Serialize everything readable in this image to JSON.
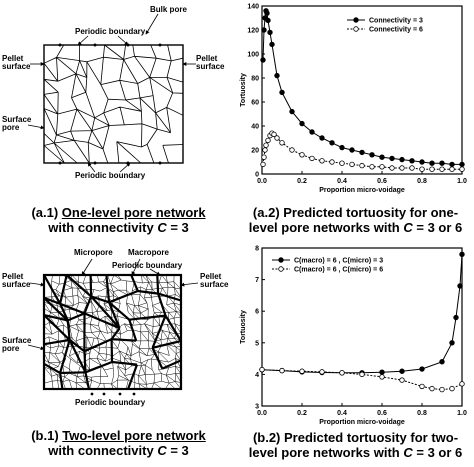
{
  "figure_a1": {
    "labels": {
      "periodic_top": "Periodic boundary",
      "bulk_pore": "Bulk pore",
      "pellet_left": "Pellet\nsurface",
      "pellet_right": "Pellet\nsurface",
      "surface_pore": "Surface\npore",
      "periodic_bottom": "Periodic boundary"
    },
    "caption": {
      "prefix": "(a.1) ",
      "underlined": "One-level pore network",
      "line2_prefix": "with connectivity ",
      "var": "C",
      "line2_suffix": " = 3"
    }
  },
  "figure_b1": {
    "labels": {
      "micropore": "Micropore",
      "macropore": "Macropore",
      "periodic_top": "Periodic boundary",
      "pellet_left": "Pellet\nsurface",
      "pellet_right": "Pellet\nsurface",
      "surface_pore": "Surface\npore",
      "periodic_bottom": "Periodic boundary"
    },
    "caption": {
      "prefix": "(b.1) ",
      "underlined": "Two-level pore network",
      "line2_prefix": "with connectivity ",
      "var": "C",
      "line2_suffix": " = 3"
    }
  },
  "figure_a2": {
    "caption": {
      "line1": "(a.2) Predicted tortuosity for one-",
      "line2_prefix": "level pore networks with ",
      "var": "C",
      "line2_suffix": " = 3 or 6"
    }
  },
  "figure_b2": {
    "caption": {
      "line1": "(b.2) Predicted tortuosity for two-",
      "line2_prefix": "level pore networks with ",
      "var": "C",
      "line2_suffix": " = 3 or 6"
    }
  },
  "chart_data": [
    {
      "type": "line",
      "xlabel": "Proportion micro-voidage",
      "ylabel": "Tortuosity",
      "xlim": [
        0,
        1.0
      ],
      "ylim": [
        0,
        140
      ],
      "xticks": [
        "0.0",
        "0.2",
        "0.4",
        "0.6",
        "0.8",
        "1.0"
      ],
      "yticks": [
        "0",
        "20",
        "40",
        "60",
        "80",
        "100",
        "120",
        "140"
      ],
      "legend_position": "top-right",
      "series": [
        {
          "name": "Connectivity = 3",
          "marker": "filled",
          "x": [
            0.005,
            0.01,
            0.015,
            0.02,
            0.025,
            0.03,
            0.04,
            0.05,
            0.075,
            0.1,
            0.15,
            0.2,
            0.25,
            0.3,
            0.35,
            0.4,
            0.45,
            0.5,
            0.55,
            0.6,
            0.65,
            0.7,
            0.75,
            0.8,
            0.85,
            0.9,
            0.95,
            1.0
          ],
          "y": [
            95,
            120,
            130,
            136,
            134,
            128,
            118,
            108,
            82,
            68,
            52,
            42,
            35,
            30,
            26,
            22,
            20,
            18,
            16,
            14,
            13,
            12,
            11,
            10,
            9,
            9,
            8,
            8
          ]
        },
        {
          "name": "Connectivity = 6",
          "marker": "open",
          "x": [
            0.005,
            0.01,
            0.015,
            0.02,
            0.03,
            0.04,
            0.05,
            0.06,
            0.075,
            0.1,
            0.15,
            0.2,
            0.25,
            0.3,
            0.35,
            0.4,
            0.45,
            0.5,
            0.55,
            0.6,
            0.65,
            0.7,
            0.75,
            0.8,
            0.85,
            0.9,
            0.95,
            1.0
          ],
          "y": [
            8,
            14,
            20,
            24,
            28,
            32,
            34,
            33,
            30,
            26,
            20,
            16,
            13,
            11,
            10,
            9,
            8,
            7,
            6,
            6,
            5,
            5,
            5,
            4,
            4,
            4,
            4,
            4
          ]
        }
      ]
    },
    {
      "type": "line",
      "xlabel": "Proportion micro-voidage",
      "ylabel": "Tortuosity",
      "xlim": [
        0,
        1.0
      ],
      "ylim": [
        3,
        8
      ],
      "xticks": [
        "0.0",
        "0.2",
        "0.4",
        "0.6",
        "0.8",
        "1.0"
      ],
      "yticks": [
        "3",
        "4",
        "5",
        "6",
        "7",
        "8"
      ],
      "legend_position": "top-left",
      "series": [
        {
          "name": "C(macro) = 6 , C(micro) = 3",
          "marker": "filled",
          "x": [
            0.0,
            0.1,
            0.2,
            0.3,
            0.4,
            0.5,
            0.6,
            0.7,
            0.8,
            0.9,
            0.95,
            0.97,
            0.99,
            1.0
          ],
          "y": [
            4.15,
            4.12,
            4.08,
            4.06,
            4.05,
            4.05,
            4.07,
            4.1,
            4.17,
            4.4,
            5.0,
            5.8,
            6.8,
            7.8
          ]
        },
        {
          "name": "C(macro) = 6 , C(micro) = 6",
          "marker": "open",
          "x": [
            0.0,
            0.1,
            0.2,
            0.3,
            0.4,
            0.5,
            0.6,
            0.7,
            0.8,
            0.85,
            0.9,
            0.95,
            1.0
          ],
          "y": [
            4.15,
            4.12,
            4.1,
            4.08,
            4.05,
            4.0,
            3.92,
            3.82,
            3.62,
            3.55,
            3.52,
            3.55,
            3.7
          ]
        }
      ]
    }
  ]
}
